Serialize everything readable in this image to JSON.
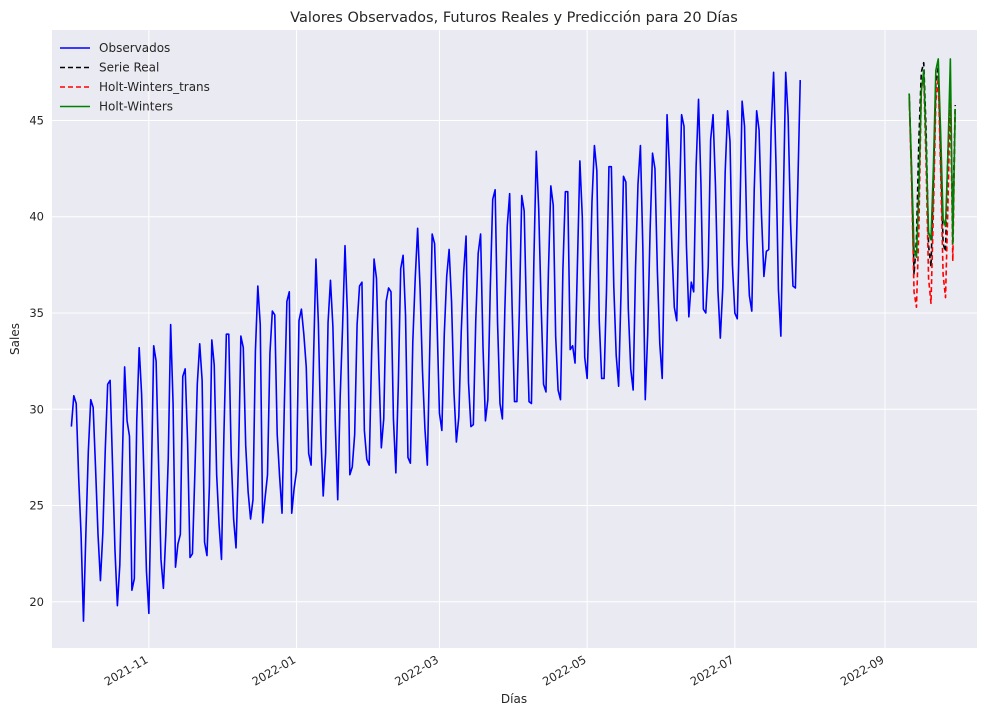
{
  "chart_data": {
    "type": "line",
    "title": "Valores Observados, Futuros Reales y Predicción para 20 Días",
    "xlabel": "Días",
    "ylabel": "Sales",
    "x_axis": "date",
    "xlim": [
      "2021-09-22",
      "2022-10-09"
    ],
    "ylim": [
      17.6,
      49.7
    ],
    "grid": true,
    "legend": "top-left",
    "x_ticks": [
      {
        "value": "2021-11-01",
        "label": "2021-11"
      },
      {
        "value": "2022-01-01",
        "label": "2022-01"
      },
      {
        "value": "2022-03-01",
        "label": "2022-03"
      },
      {
        "value": "2022-05-01",
        "label": "2022-05"
      },
      {
        "value": "2022-07-01",
        "label": "2022-07"
      },
      {
        "value": "2022-09-01",
        "label": "2022-09"
      }
    ],
    "y_ticks": [
      20,
      25,
      30,
      35,
      40,
      45
    ],
    "series": [
      {
        "name": "Observados",
        "color": "#0000ff",
        "style": "solid",
        "start": "2021-09-30",
        "values": [
          29.1,
          30.7,
          30.3,
          26.5,
          23.5,
          19.0,
          23.6,
          27.8,
          30.5,
          30.1,
          26.9,
          23.5,
          21.1,
          23.6,
          27.9,
          31.3,
          31.5,
          27.1,
          22.7,
          19.8,
          21.9,
          27.1,
          32.2,
          29.4,
          28.6,
          20.6,
          21.2,
          29.4,
          33.2,
          30.8,
          26.4,
          21.6,
          19.4,
          26.1,
          33.3,
          32.5,
          27.3,
          22.2,
          20.7,
          23.5,
          27.4,
          34.4,
          30.3,
          21.8,
          23.0,
          23.5,
          31.7,
          32.1,
          28.3,
          22.3,
          22.5,
          26.7,
          31.3,
          33.4,
          31.5,
          23.1,
          22.4,
          26.0,
          33.6,
          32.3,
          26.6,
          24.0,
          22.2,
          28.7,
          33.9,
          33.9,
          27.6,
          24.3,
          22.8,
          27.2,
          33.8,
          33.2,
          28.1,
          25.7,
          24.3,
          25.3,
          33.0,
          36.4,
          34.4,
          24.1,
          25.4,
          26.6,
          32.9,
          35.1,
          34.9,
          28.7,
          26.5,
          24.6,
          30.5,
          35.6,
          36.1,
          24.6,
          25.9,
          26.8,
          34.6,
          35.2,
          33.9,
          32.2,
          27.7,
          27.1,
          32.6,
          37.8,
          34.5,
          28.8,
          25.5,
          27.7,
          34.5,
          36.7,
          34.3,
          29.2,
          25.3,
          30.6,
          34.3,
          38.5,
          35.0,
          26.6,
          27.0,
          28.7,
          34.4,
          36.4,
          36.6,
          28.9,
          27.4,
          27.1,
          32.9,
          37.8,
          36.8,
          32.1,
          28.0,
          29.5,
          35.6,
          36.3,
          36.1,
          29.5,
          26.7,
          31.2,
          37.3,
          38.0,
          34.9,
          27.5,
          27.2,
          33.5,
          36.8,
          39.4,
          36.3,
          32.0,
          29.0,
          27.1,
          33.1,
          39.1,
          38.6,
          34.6,
          29.8,
          28.9,
          33.9,
          36.9,
          38.3,
          35.6,
          30.9,
          28.3,
          29.6,
          34.0,
          37.1,
          39.0,
          31.4,
          29.1,
          29.2,
          34.6,
          38.1,
          39.1,
          33.2,
          29.4,
          30.5,
          36.3,
          40.9,
          41.4,
          34.5,
          30.3,
          29.5,
          35.1,
          39.5,
          41.2,
          35.4,
          30.4,
          30.4,
          35.1,
          41.1,
          40.3,
          34.6,
          30.4,
          30.3,
          37.7,
          43.4,
          40.4,
          35.4,
          31.3,
          30.9,
          37.1,
          41.6,
          40.6,
          33.8,
          31.0,
          30.5,
          37.3,
          41.3,
          41.3,
          33.1,
          33.3,
          32.4,
          37.6,
          42.9,
          40.0,
          32.7,
          31.6,
          35.8,
          40.8,
          43.7,
          42.4,
          34.6,
          31.6,
          31.6,
          36.2,
          42.6,
          42.6,
          36.4,
          32.8,
          31.2,
          36.1,
          42.1,
          41.8,
          35.2,
          32.1,
          31.0,
          37.4,
          41.7,
          43.7,
          38.4,
          30.5,
          33.9,
          39.3,
          43.3,
          42.5,
          37.2,
          33.4,
          31.6,
          38.6,
          45.3,
          42.5,
          38.4,
          35.3,
          34.6,
          40.1,
          45.3,
          44.7,
          38.5,
          34.8,
          36.6,
          36.1,
          42.6,
          46.1,
          41.7,
          35.2,
          35.0,
          37.4,
          44.0,
          45.3,
          41.6,
          36.2,
          33.7,
          36.3,
          42.3,
          45.5,
          43.9,
          37.5,
          35.0,
          34.7,
          39.7,
          46.0,
          44.7,
          38.8,
          35.9,
          35.1,
          41.4,
          45.5,
          44.5,
          40.1,
          36.9,
          38.2,
          38.3,
          44.6,
          47.5,
          42.7,
          36.2,
          33.8,
          40.7,
          47.5,
          45.2,
          39.7,
          36.4,
          36.3,
          41.6,
          47.1
        ]
      },
      {
        "name": "Serie Real",
        "color": "#000000",
        "style": "dashed",
        "start": "2022-09-11",
        "values": [
          46.4,
          42.2,
          37.0,
          38.8,
          44.0,
          47.5,
          48.0,
          44.4,
          38.5,
          37.4,
          41.8,
          46.9,
          47.8,
          43.3,
          38.6,
          38.2,
          43.4,
          45.6,
          39.8,
          45.8
        ]
      },
      {
        "name": "Holt-Winters_trans",
        "color": "#ff0000",
        "style": "dashed",
        "start": "2022-09-11",
        "values": [
          46.2,
          41.7,
          36.1,
          35.3,
          39.4,
          46.6,
          47.3,
          42.6,
          36.8,
          35.5,
          40.3,
          46.0,
          47.2,
          42.3,
          37.0,
          35.8,
          40.6,
          46.6,
          37.7,
          45.5
        ]
      },
      {
        "name": "Holt-Winters",
        "color": "#008000",
        "style": "solid",
        "start": "2022-09-11",
        "values": [
          46.4,
          42.5,
          38.3,
          37.9,
          41.4,
          46.5,
          47.6,
          43.6,
          39.2,
          38.8,
          42.6,
          47.6,
          48.2,
          44.3,
          39.9,
          39.5,
          43.3,
          48.2,
          38.6,
          45.6
        ]
      }
    ]
  }
}
